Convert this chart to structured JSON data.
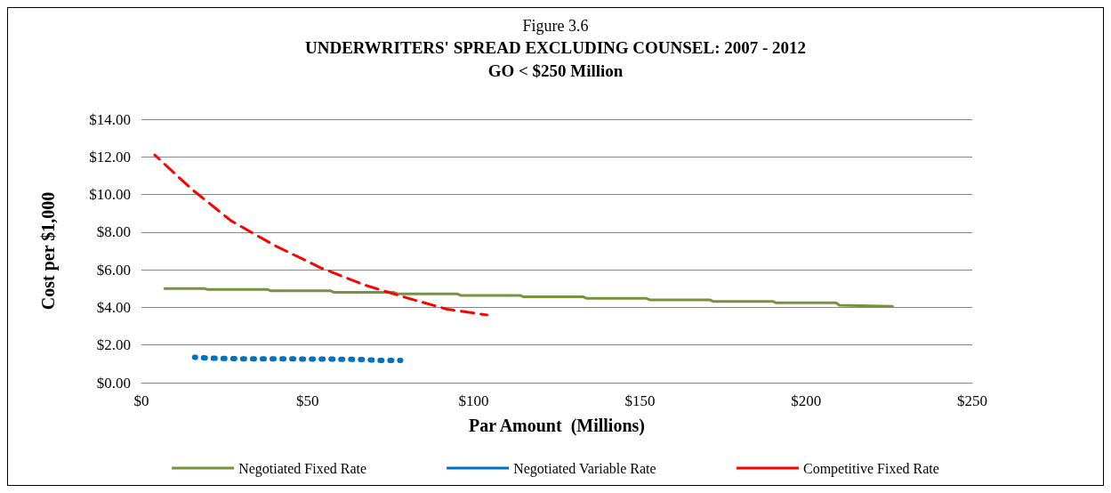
{
  "chart_data": {
    "type": "line",
    "title": "Figure 3.6",
    "subtitle": "UNDERWRITERS' SPREAD EXCLUDING COUNSEL: 2007 - 2012\nGO < $250 Million",
    "xlabel": "Par Amount  (Millions)",
    "ylabel": "Cost per $1,000",
    "xlim": [
      0,
      250
    ],
    "xticks": [
      {
        "value": 0,
        "label": "$0"
      },
      {
        "value": 50,
        "label": "$50"
      },
      {
        "value": 100,
        "label": "$100"
      },
      {
        "value": 150,
        "label": "$150"
      },
      {
        "value": 200,
        "label": "$200"
      },
      {
        "value": 250,
        "label": "$250"
      }
    ],
    "ylim": [
      0,
      14
    ],
    "yticks": [
      {
        "value": 0,
        "label": "$0.00"
      },
      {
        "value": 2,
        "label": "$2.00"
      },
      {
        "value": 4,
        "label": "$4.00"
      },
      {
        "value": 6,
        "label": "$6.00"
      },
      {
        "value": 8,
        "label": "$8.00"
      },
      {
        "value": 10,
        "label": "$10.00"
      },
      {
        "value": 12,
        "label": "$12.00"
      },
      {
        "value": 14,
        "label": "$14.00"
      }
    ],
    "grid": "y",
    "legend": "bottom",
    "marker": "none",
    "series": [
      {
        "name": "Negotiated Fixed Rate",
        "color": "#77933c",
        "line_style": "solid",
        "x": [
          7,
          19,
          20,
          38,
          39,
          57,
          58,
          76,
          77,
          95,
          96,
          114,
          115,
          133,
          134,
          152,
          153,
          171,
          172,
          190,
          191,
          209,
          210,
          226
        ],
        "values": [
          5.0,
          5.0,
          4.95,
          4.95,
          4.88,
          4.88,
          4.8,
          4.8,
          4.72,
          4.72,
          4.64,
          4.64,
          4.56,
          4.56,
          4.48,
          4.48,
          4.4,
          4.4,
          4.32,
          4.32,
          4.24,
          4.24,
          4.12,
          4.05
        ]
      },
      {
        "name": "Negotiated Variable Rate",
        "color": "#0070c0",
        "line_style": "dotted",
        "x": [
          16,
          21,
          26,
          31,
          36,
          42,
          47,
          52,
          57,
          62,
          67,
          72,
          78
        ],
        "values": [
          1.35,
          1.3,
          1.28,
          1.27,
          1.27,
          1.26,
          1.26,
          1.25,
          1.25,
          1.24,
          1.23,
          1.18,
          1.18
        ]
      },
      {
        "name": "Competitive Fixed Rate",
        "color": "#ff0000",
        "line_style": "dashed",
        "x": [
          4,
          15,
          27,
          40,
          54,
          67,
          80,
          92,
          104
        ],
        "values": [
          12.1,
          10.3,
          8.6,
          7.3,
          6.1,
          5.2,
          4.5,
          3.9,
          3.6
        ]
      }
    ]
  }
}
